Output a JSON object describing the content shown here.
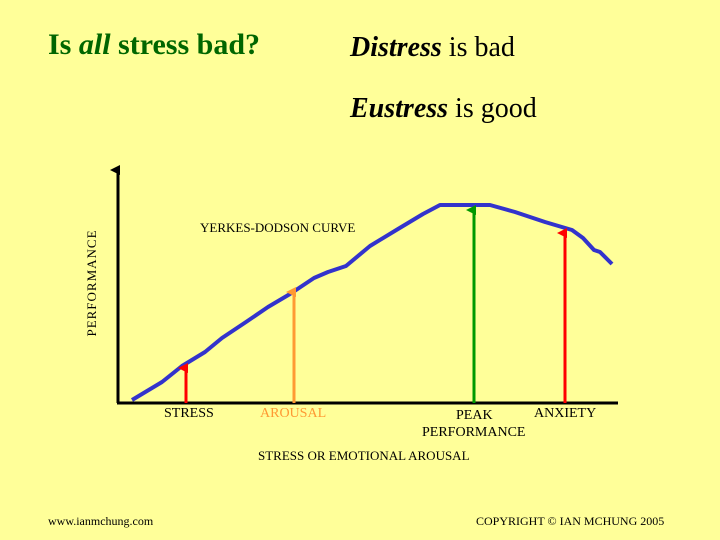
{
  "title": {
    "prefix": "Is ",
    "emphasis": "all",
    "suffix": " stress bad?"
  },
  "statements": [
    {
      "emphasis": "Distress",
      "rest": " is bad"
    },
    {
      "emphasis": "Eustress",
      "rest": " is good"
    }
  ],
  "diagram": {
    "curve_label": "YERKES-DODSON CURVE",
    "y_axis_label": "PERFORMANCE",
    "x_axis_label": "STRESS OR EMOTIONAL AROUSAL",
    "markers": [
      {
        "label": "STRESS",
        "color": "#ff0000"
      },
      {
        "label": "AROUSAL",
        "color": "#ff9933"
      },
      {
        "label_line1": "PEAK",
        "label_line2": "PERFORMANCE",
        "color": "#009900"
      },
      {
        "label": "ANXIETY",
        "color": "#ff0000"
      }
    ],
    "curve_color": "#3333cc"
  },
  "footer": {
    "website": "www.ianmchung.com",
    "copyright": "COPYRIGHT © IAN MCHUNG 2005"
  }
}
